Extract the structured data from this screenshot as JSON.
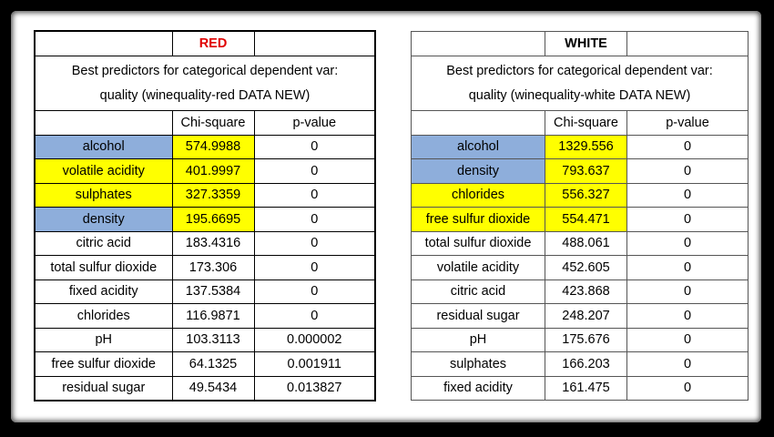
{
  "red": {
    "label": "RED",
    "title_line1": "Best predictors for categorical dependent var:",
    "title_line2": "quality (winequality-red DATA NEW)",
    "col_chi": "Chi-square",
    "col_p": "p-value",
    "rows": [
      {
        "name": "alcohol",
        "chi": "574.9988",
        "p": "0"
      },
      {
        "name": "volatile acidity",
        "chi": "401.9997",
        "p": "0"
      },
      {
        "name": "sulphates",
        "chi": "327.3359",
        "p": "0"
      },
      {
        "name": "density",
        "chi": "195.6695",
        "p": "0"
      },
      {
        "name": "citric acid",
        "chi": "183.4316",
        "p": "0"
      },
      {
        "name": "total sulfur dioxide",
        "chi": "173.306",
        "p": "0"
      },
      {
        "name": "fixed acidity",
        "chi": "137.5384",
        "p": "0"
      },
      {
        "name": "chlorides",
        "chi": "116.9871",
        "p": "0"
      },
      {
        "name": "pH",
        "chi": "103.3113",
        "p": "0.000002"
      },
      {
        "name": "free sulfur dioxide",
        "chi": "64.1325",
        "p": "0.001911"
      },
      {
        "name": "residual sugar",
        "chi": "49.5434",
        "p": "0.013827"
      }
    ]
  },
  "white": {
    "label": "WHITE",
    "title_line1": "Best predictors for categorical dependent var:",
    "title_line2": "quality (winequality-white DATA NEW)",
    "col_chi": "Chi-square",
    "col_p": "p-value",
    "rows": [
      {
        "name": "alcohol",
        "chi": "1329.556",
        "p": "0"
      },
      {
        "name": "density",
        "chi": "793.637",
        "p": "0"
      },
      {
        "name": "chlorides",
        "chi": "556.327",
        "p": "0"
      },
      {
        "name": "free sulfur dioxide",
        "chi": "554.471",
        "p": "0"
      },
      {
        "name": "total sulfur dioxide",
        "chi": "488.061",
        "p": "0"
      },
      {
        "name": "volatile acidity",
        "chi": "452.605",
        "p": "0"
      },
      {
        "name": "citric acid",
        "chi": "423.868",
        "p": "0"
      },
      {
        "name": "residual sugar",
        "chi": "248.207",
        "p": "0"
      },
      {
        "name": "pH",
        "chi": "175.676",
        "p": "0"
      },
      {
        "name": "sulphates",
        "chi": "166.203",
        "p": "0"
      },
      {
        "name": "fixed acidity",
        "chi": "161.475",
        "p": "0"
      }
    ]
  },
  "highlight_colors": {
    "blue": "#8eaedb",
    "yellow": "#ffff00",
    "red_label": "#e00000"
  }
}
